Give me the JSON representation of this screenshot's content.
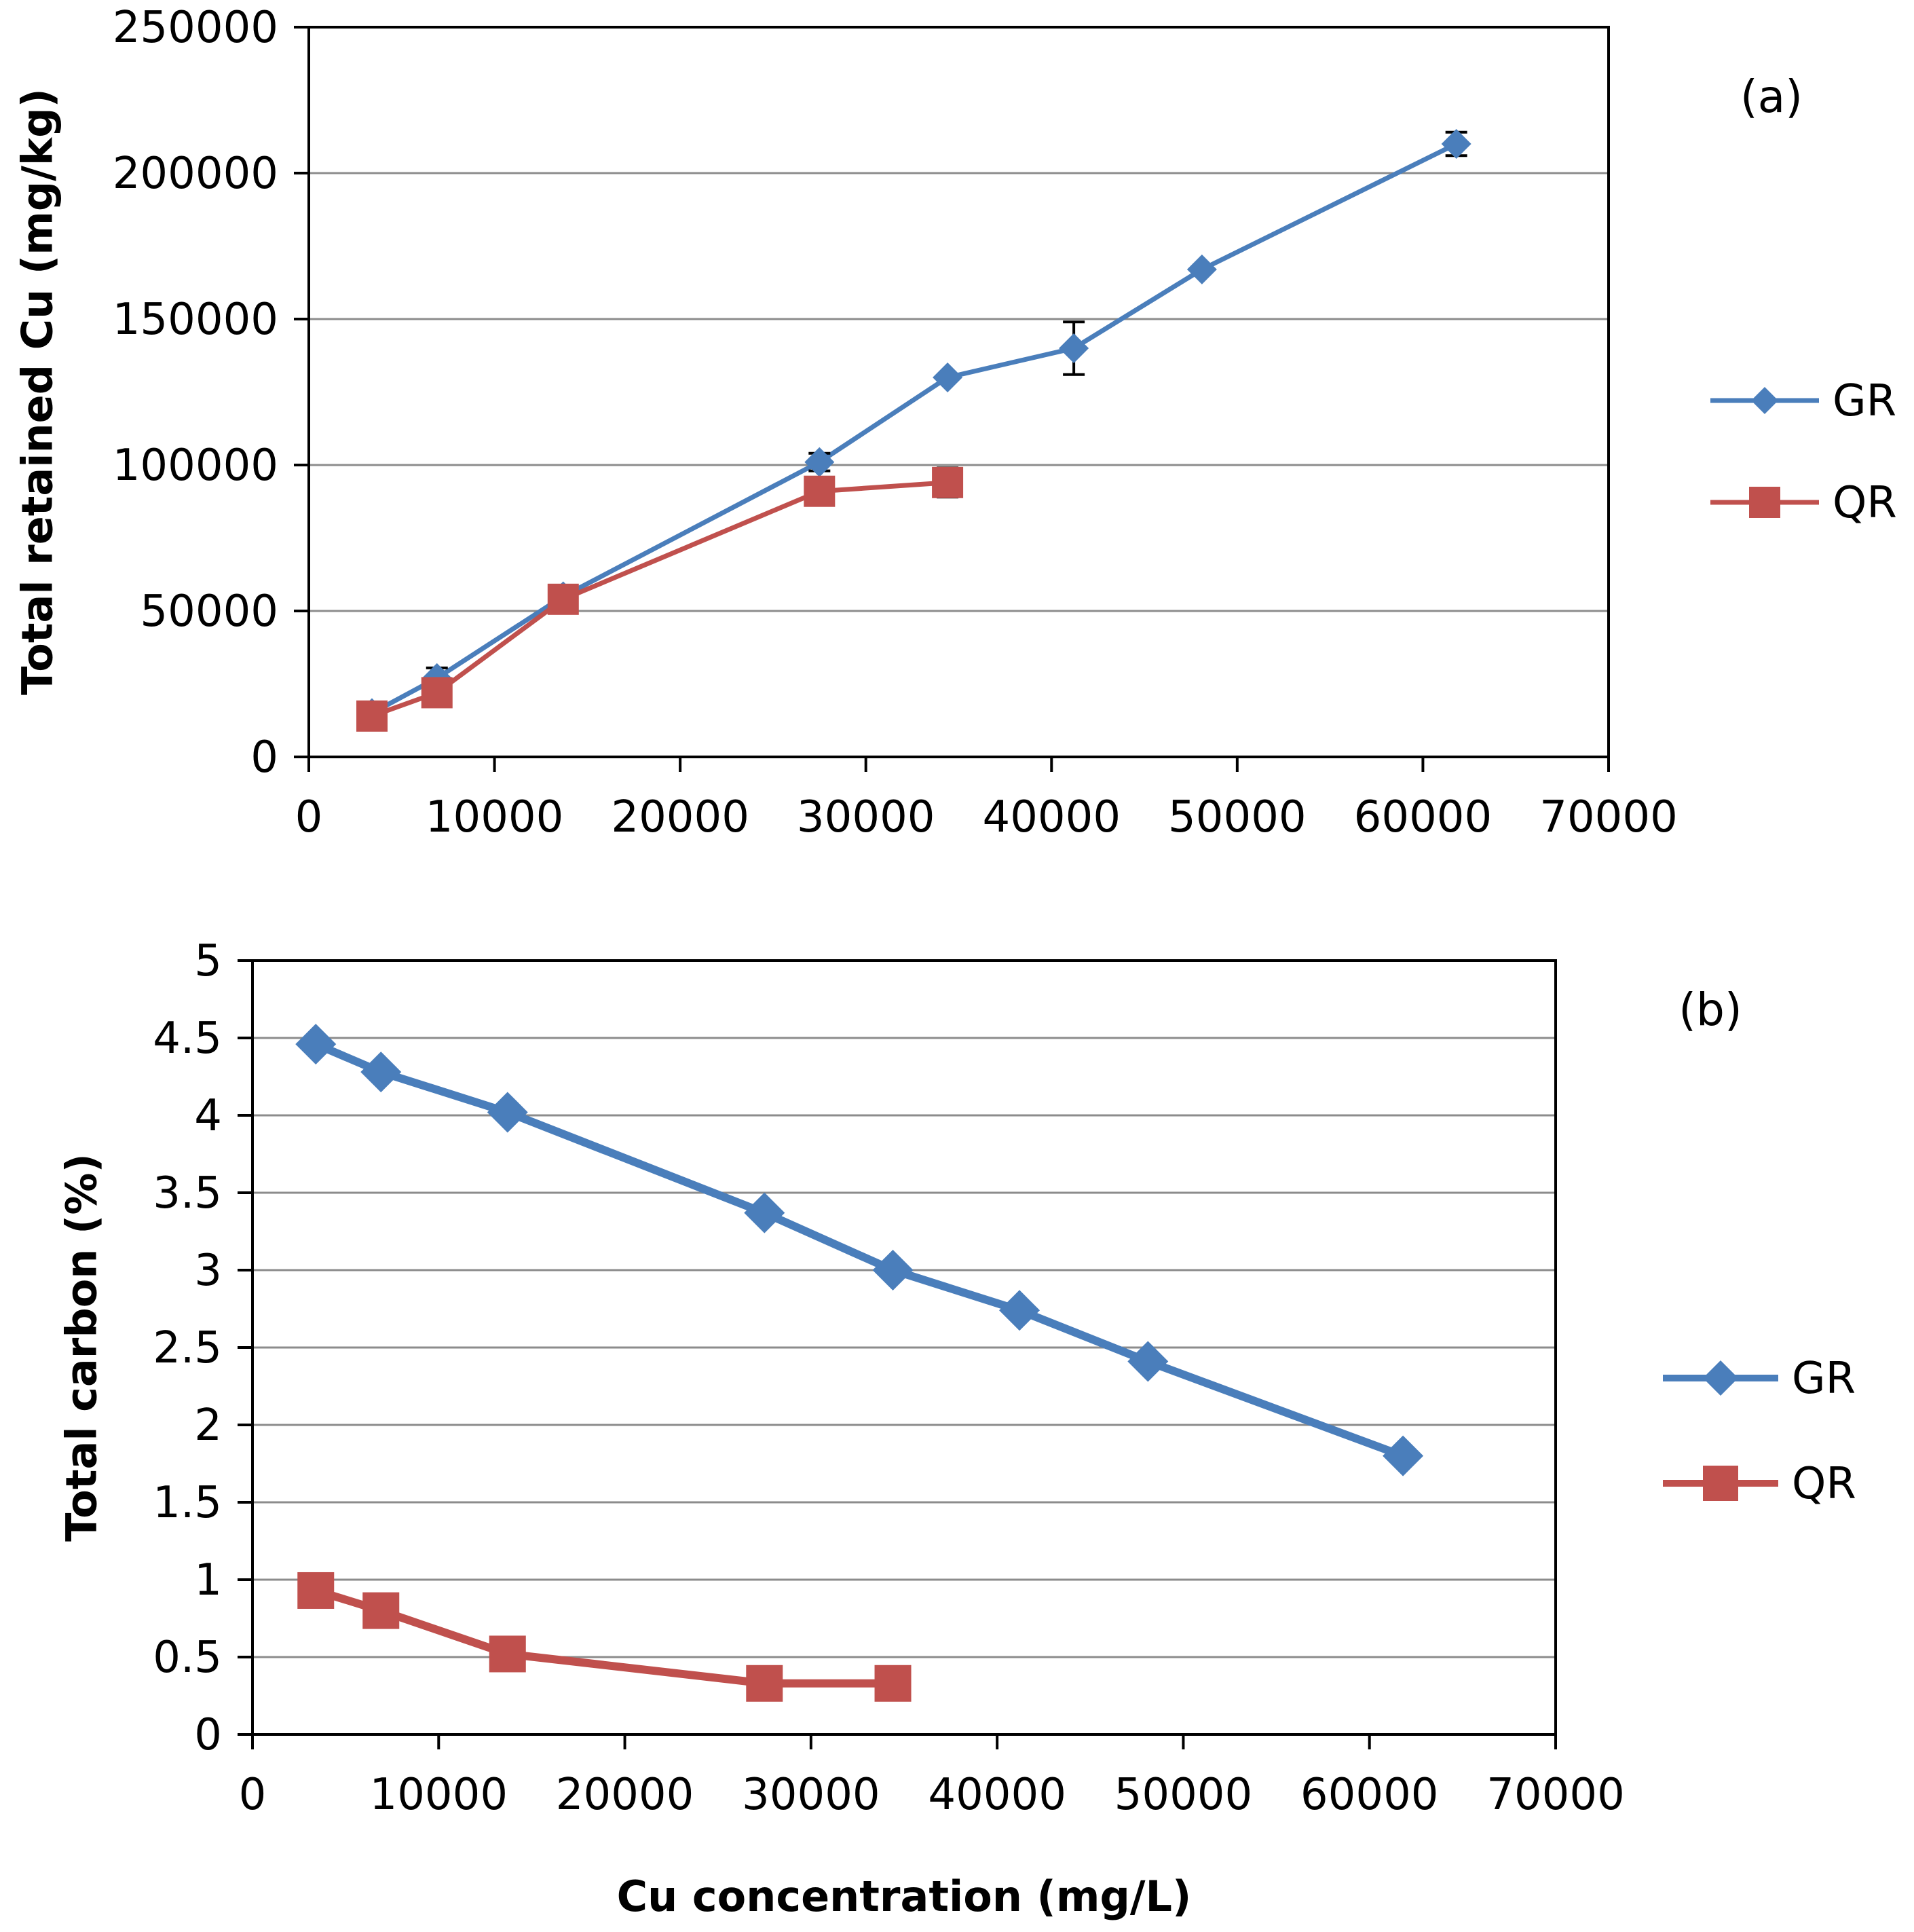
{
  "chart_data": [
    {
      "type": "line",
      "panel_label": "(a)",
      "title": "",
      "xlabel": "",
      "ylabel": "Total retained Cu (mg/kg)",
      "xlim": [
        0,
        70000
      ],
      "ylim": [
        0,
        250000
      ],
      "x_ticks": [
        0,
        10000,
        20000,
        30000,
        40000,
        50000,
        60000,
        70000
      ],
      "y_ticks": [
        0,
        50000,
        100000,
        150000,
        200000,
        250000
      ],
      "x_tick_labels": [
        "0",
        "10000",
        "20000",
        "30000",
        "40000",
        "50000",
        "60000",
        "70000"
      ],
      "y_tick_labels": [
        "0",
        "50000",
        "100000",
        "150000",
        "200000",
        "250000"
      ],
      "grid": "horizontal",
      "legend_position": "right",
      "series": [
        {
          "name": "GR",
          "color": "#4a7ebb",
          "marker": "diamond",
          "x": [
            3400,
            6900,
            13700,
            27500,
            34400,
            41200,
            48100,
            61800
          ],
          "y": [
            15000,
            27000,
            55000,
            101000,
            130000,
            140000,
            167000,
            210000
          ],
          "error": [
            0,
            3500,
            0,
            3000,
            0,
            9000,
            0,
            4000
          ]
        },
        {
          "name": "QR",
          "color": "#c0504d",
          "marker": "square",
          "x": [
            3400,
            6900,
            13700,
            27500,
            34400
          ],
          "y": [
            14000,
            22000,
            54000,
            91000,
            94000
          ],
          "error": [
            0,
            0,
            0,
            2500,
            5000
          ]
        }
      ]
    },
    {
      "type": "line",
      "panel_label": "(b)",
      "title": "",
      "xlabel": "Cu concentration (mg/L)",
      "ylabel": "Total carbon (%)",
      "xlim": [
        0,
        70000
      ],
      "ylim": [
        0,
        5
      ],
      "x_ticks": [
        0,
        10000,
        20000,
        30000,
        40000,
        50000,
        60000,
        70000
      ],
      "y_ticks": [
        0,
        0.5,
        1,
        1.5,
        2,
        2.5,
        3,
        3.5,
        4,
        4.5,
        5
      ],
      "x_tick_labels": [
        "0",
        "10000",
        "20000",
        "30000",
        "40000",
        "50000",
        "60000",
        "70000"
      ],
      "y_tick_labels": [
        "0",
        "0.5",
        "1",
        "1.5",
        "2",
        "2.5",
        "3",
        "3.5",
        "4",
        "4.5",
        "5"
      ],
      "grid": "horizontal",
      "legend_position": "right",
      "series": [
        {
          "name": "GR",
          "color": "#4a7ebb",
          "marker": "diamond",
          "x": [
            3400,
            6900,
            13700,
            27500,
            34400,
            41200,
            48100,
            61800
          ],
          "y": [
            4.46,
            4.28,
            4.02,
            3.37,
            3.0,
            2.74,
            2.41,
            1.8
          ],
          "error": [
            0,
            0,
            0,
            0,
            0,
            0,
            0,
            0
          ]
        },
        {
          "name": "QR",
          "color": "#c0504d",
          "marker": "square",
          "x": [
            3400,
            6900,
            13700,
            27500,
            34400
          ],
          "y": [
            0.93,
            0.8,
            0.52,
            0.33,
            0.33
          ],
          "error": [
            0,
            0,
            0,
            0,
            0
          ]
        }
      ]
    }
  ]
}
